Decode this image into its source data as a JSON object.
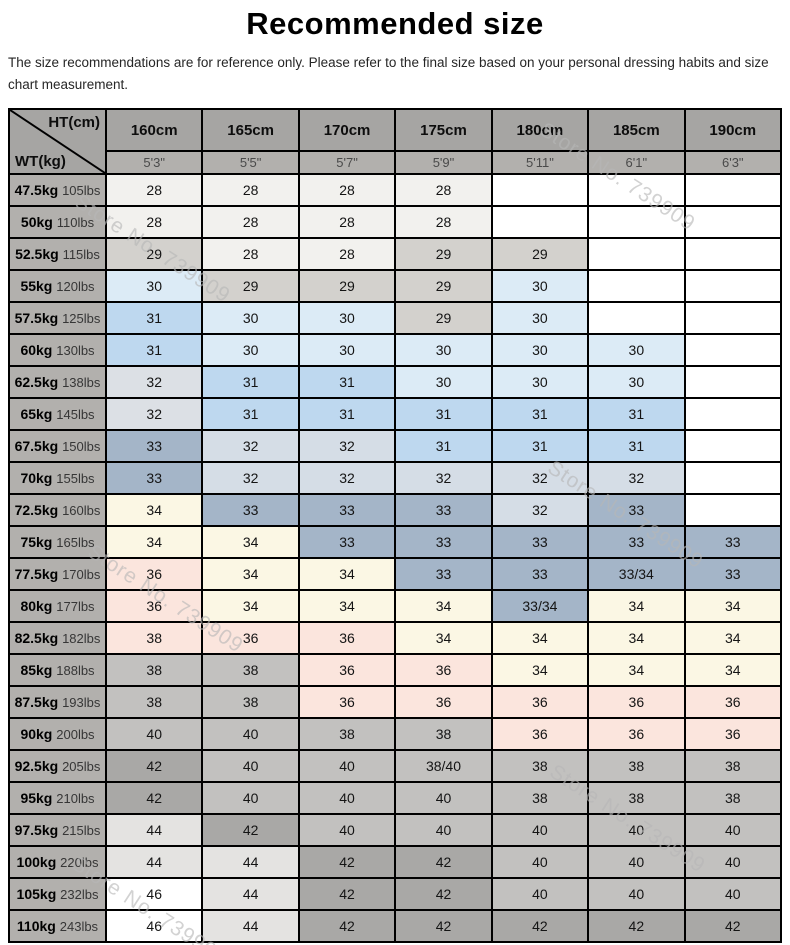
{
  "page": {
    "title": "Recommended size",
    "subtitle": "The size recommendations are for reference only. Please refer to the final size based on your personal dressing habits and size chart measurement."
  },
  "watermark": {
    "text": "Store No. 739909"
  },
  "colors": {
    "header_dark": "#a6a5a3",
    "header_mid": "#b2b0ad",
    "light": "#f2f1ee",
    "gray": "#d3d1cd",
    "bluepale": "#dcebf6",
    "blue": "#bed8ef",
    "bluegray": "#dce0e5",
    "slatelight": "#d5dde6",
    "slate": "#a4b5c8",
    "cream": "#fbf7e4",
    "pink": "#fbe5dd",
    "graymid": "#c2c1bf",
    "graydark": "#a9a8a6",
    "graylight": "#e4e3e1",
    "white": "#ffffff",
    "blank": "#ffffff"
  },
  "chart_data": {
    "type": "table",
    "title": "Recommended size",
    "corner": {
      "top": "HT(cm)",
      "bottom": "WT(kg)"
    },
    "columns": [
      {
        "cm": "160cm",
        "ft": "5'3\""
      },
      {
        "cm": "165cm",
        "ft": "5'5\""
      },
      {
        "cm": "170cm",
        "ft": "5'7\""
      },
      {
        "cm": "175cm",
        "ft": "5'9\""
      },
      {
        "cm": "180cm",
        "ft": "5'11\""
      },
      {
        "cm": "185cm",
        "ft": "6'1\""
      },
      {
        "cm": "190cm",
        "ft": "6'3\""
      }
    ],
    "rows": [
      {
        "kg": "47.5kg",
        "lbs": "105lbs",
        "cells": [
          [
            "28",
            "light"
          ],
          [
            "28",
            "light"
          ],
          [
            "28",
            "light"
          ],
          [
            "28",
            "light"
          ],
          [
            "",
            "blank"
          ],
          [
            "",
            "blank"
          ],
          [
            "",
            "blank"
          ]
        ]
      },
      {
        "kg": "50kg",
        "lbs": "110lbs",
        "cells": [
          [
            "28",
            "light"
          ],
          [
            "28",
            "light"
          ],
          [
            "28",
            "light"
          ],
          [
            "28",
            "light"
          ],
          [
            "",
            "blank"
          ],
          [
            "",
            "blank"
          ],
          [
            "",
            "blank"
          ]
        ]
      },
      {
        "kg": "52.5kg",
        "lbs": "115lbs",
        "cells": [
          [
            "29",
            "gray"
          ],
          [
            "28",
            "light"
          ],
          [
            "28",
            "light"
          ],
          [
            "29",
            "gray"
          ],
          [
            "29",
            "gray"
          ],
          [
            "",
            "blank"
          ],
          [
            "",
            "blank"
          ]
        ]
      },
      {
        "kg": "55kg",
        "lbs": "120lbs",
        "cells": [
          [
            "30",
            "bluepale"
          ],
          [
            "29",
            "gray"
          ],
          [
            "29",
            "gray"
          ],
          [
            "29",
            "gray"
          ],
          [
            "30",
            "bluepale"
          ],
          [
            "",
            "blank"
          ],
          [
            "",
            "blank"
          ]
        ]
      },
      {
        "kg": "57.5kg",
        "lbs": "125lbs",
        "cells": [
          [
            "31",
            "blue"
          ],
          [
            "30",
            "bluepale"
          ],
          [
            "30",
            "bluepale"
          ],
          [
            "29",
            "gray"
          ],
          [
            "30",
            "bluepale"
          ],
          [
            "",
            "blank"
          ],
          [
            "",
            "blank"
          ]
        ]
      },
      {
        "kg": "60kg",
        "lbs": "130lbs",
        "cells": [
          [
            "31",
            "blue"
          ],
          [
            "30",
            "bluepale"
          ],
          [
            "30",
            "bluepale"
          ],
          [
            "30",
            "bluepale"
          ],
          [
            "30",
            "bluepale"
          ],
          [
            "30",
            "bluepale"
          ],
          [
            "",
            "blank"
          ]
        ]
      },
      {
        "kg": "62.5kg",
        "lbs": "138lbs",
        "cells": [
          [
            "32",
            "bluegray"
          ],
          [
            "31",
            "blue"
          ],
          [
            "31",
            "blue"
          ],
          [
            "30",
            "bluepale"
          ],
          [
            "30",
            "bluepale"
          ],
          [
            "30",
            "bluepale"
          ],
          [
            "",
            "blank"
          ]
        ]
      },
      {
        "kg": "65kg",
        "lbs": "145lbs",
        "cells": [
          [
            "32",
            "bluegray"
          ],
          [
            "31",
            "blue"
          ],
          [
            "31",
            "blue"
          ],
          [
            "31",
            "blue"
          ],
          [
            "31",
            "blue"
          ],
          [
            "31",
            "blue"
          ],
          [
            "",
            "blank"
          ]
        ]
      },
      {
        "kg": "67.5kg",
        "lbs": "150lbs",
        "cells": [
          [
            "33",
            "slate"
          ],
          [
            "32",
            "slatelight"
          ],
          [
            "32",
            "slatelight"
          ],
          [
            "31",
            "blue"
          ],
          [
            "31",
            "blue"
          ],
          [
            "31",
            "blue"
          ],
          [
            "",
            "blank"
          ]
        ]
      },
      {
        "kg": "70kg",
        "lbs": "155lbs",
        "cells": [
          [
            "33",
            "slate"
          ],
          [
            "32",
            "slatelight"
          ],
          [
            "32",
            "slatelight"
          ],
          [
            "32",
            "slatelight"
          ],
          [
            "32",
            "slatelight"
          ],
          [
            "32",
            "slatelight"
          ],
          [
            "",
            "blank"
          ]
        ]
      },
      {
        "kg": "72.5kg",
        "lbs": "160lbs",
        "cells": [
          [
            "34",
            "cream"
          ],
          [
            "33",
            "slate"
          ],
          [
            "33",
            "slate"
          ],
          [
            "33",
            "slate"
          ],
          [
            "32",
            "slatelight"
          ],
          [
            "33",
            "slate"
          ],
          [
            "",
            "blank"
          ]
        ]
      },
      {
        "kg": "75kg",
        "lbs": "165lbs",
        "cells": [
          [
            "34",
            "cream"
          ],
          [
            "34",
            "cream"
          ],
          [
            "33",
            "slate"
          ],
          [
            "33",
            "slate"
          ],
          [
            "33",
            "slate"
          ],
          [
            "33",
            "slate"
          ],
          [
            "33",
            "slate"
          ]
        ]
      },
      {
        "kg": "77.5kg",
        "lbs": "170lbs",
        "cells": [
          [
            "36",
            "pink"
          ],
          [
            "34",
            "cream"
          ],
          [
            "34",
            "cream"
          ],
          [
            "33",
            "slate"
          ],
          [
            "33",
            "slate"
          ],
          [
            "33/34",
            "slate"
          ],
          [
            "33",
            "slate"
          ]
        ]
      },
      {
        "kg": "80kg",
        "lbs": "177lbs",
        "cells": [
          [
            "36",
            "pink"
          ],
          [
            "34",
            "cream"
          ],
          [
            "34",
            "cream"
          ],
          [
            "34",
            "cream"
          ],
          [
            "33/34",
            "slate"
          ],
          [
            "34",
            "cream"
          ],
          [
            "34",
            "cream"
          ]
        ]
      },
      {
        "kg": "82.5kg",
        "lbs": "182lbs",
        "cells": [
          [
            "38",
            "pink"
          ],
          [
            "36",
            "pink"
          ],
          [
            "36",
            "pink"
          ],
          [
            "34",
            "cream"
          ],
          [
            "34",
            "cream"
          ],
          [
            "34",
            "cream"
          ],
          [
            "34",
            "cream"
          ]
        ]
      },
      {
        "kg": "85kg",
        "lbs": "188lbs",
        "cells": [
          [
            "38",
            "graymid"
          ],
          [
            "38",
            "graymid"
          ],
          [
            "36",
            "pink"
          ],
          [
            "36",
            "pink"
          ],
          [
            "34",
            "cream"
          ],
          [
            "34",
            "cream"
          ],
          [
            "34",
            "cream"
          ]
        ]
      },
      {
        "kg": "87.5kg",
        "lbs": "193lbs",
        "cells": [
          [
            "38",
            "graymid"
          ],
          [
            "38",
            "graymid"
          ],
          [
            "36",
            "pink"
          ],
          [
            "36",
            "pink"
          ],
          [
            "36",
            "pink"
          ],
          [
            "36",
            "pink"
          ],
          [
            "36",
            "pink"
          ]
        ]
      },
      {
        "kg": "90kg",
        "lbs": "200lbs",
        "cells": [
          [
            "40",
            "graymid"
          ],
          [
            "40",
            "graymid"
          ],
          [
            "38",
            "graymid"
          ],
          [
            "38",
            "graymid"
          ],
          [
            "36",
            "pink"
          ],
          [
            "36",
            "pink"
          ],
          [
            "36",
            "pink"
          ]
        ]
      },
      {
        "kg": "92.5kg",
        "lbs": "205lbs",
        "cells": [
          [
            "42",
            "graydark"
          ],
          [
            "40",
            "graymid"
          ],
          [
            "40",
            "graymid"
          ],
          [
            "38/40",
            "graymid"
          ],
          [
            "38",
            "graymid"
          ],
          [
            "38",
            "graymid"
          ],
          [
            "38",
            "graymid"
          ]
        ]
      },
      {
        "kg": "95kg",
        "lbs": "210lbs",
        "cells": [
          [
            "42",
            "graydark"
          ],
          [
            "40",
            "graymid"
          ],
          [
            "40",
            "graymid"
          ],
          [
            "40",
            "graymid"
          ],
          [
            "38",
            "graymid"
          ],
          [
            "38",
            "graymid"
          ],
          [
            "38",
            "graymid"
          ]
        ]
      },
      {
        "kg": "97.5kg",
        "lbs": "215lbs",
        "cells": [
          [
            "44",
            "graylight"
          ],
          [
            "42",
            "graydark"
          ],
          [
            "40",
            "graymid"
          ],
          [
            "40",
            "graymid"
          ],
          [
            "40",
            "graymid"
          ],
          [
            "40",
            "graymid"
          ],
          [
            "40",
            "graymid"
          ]
        ]
      },
      {
        "kg": "100kg",
        "lbs": "220lbs",
        "cells": [
          [
            "44",
            "graylight"
          ],
          [
            "44",
            "graylight"
          ],
          [
            "42",
            "graydark"
          ],
          [
            "42",
            "graydark"
          ],
          [
            "40",
            "graymid"
          ],
          [
            "40",
            "graymid"
          ],
          [
            "40",
            "graymid"
          ]
        ]
      },
      {
        "kg": "105kg",
        "lbs": "232lbs",
        "cells": [
          [
            "46",
            "white"
          ],
          [
            "44",
            "graylight"
          ],
          [
            "42",
            "graydark"
          ],
          [
            "42",
            "graydark"
          ],
          [
            "40",
            "graymid"
          ],
          [
            "40",
            "graymid"
          ],
          [
            "40",
            "graymid"
          ]
        ]
      },
      {
        "kg": "110kg",
        "lbs": "243lbs",
        "cells": [
          [
            "46",
            "white"
          ],
          [
            "44",
            "graylight"
          ],
          [
            "42",
            "graydark"
          ],
          [
            "42",
            "graydark"
          ],
          [
            "42",
            "graydark"
          ],
          [
            "42",
            "graydark"
          ],
          [
            "42",
            "graydark"
          ]
        ]
      }
    ]
  }
}
